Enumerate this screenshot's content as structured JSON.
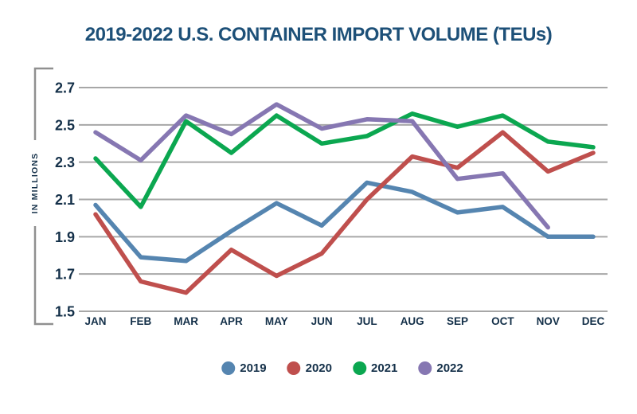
{
  "chart_data": {
    "type": "line",
    "title": "2019-2022 U.S. CONTAINER IMPORT VOLUME (TEUs)",
    "ylabel": "IN MILLIONS",
    "xlabel": "",
    "x_labels": [
      "JAN",
      "FEB",
      "MAR",
      "APR",
      "MAY",
      "JUN",
      "JUL",
      "AUG",
      "SEP",
      "OCT",
      "NOV",
      "DEC"
    ],
    "y_ticks": [
      2.7,
      2.5,
      2.3,
      2.1,
      1.9,
      1.7,
      1.5
    ],
    "ylim": [
      1.5,
      2.7
    ],
    "grid": true,
    "legend_position": "bottom",
    "series": [
      {
        "name": "2019",
        "color": "#5585b0",
        "values": [
          2.07,
          1.79,
          1.77,
          1.93,
          2.08,
          1.96,
          2.19,
          2.14,
          2.03,
          2.06,
          1.9,
          1.9
        ]
      },
      {
        "name": "2020",
        "color": "#bf4f4d",
        "values": [
          2.02,
          1.66,
          1.6,
          1.83,
          1.69,
          1.81,
          2.1,
          2.33,
          2.27,
          2.46,
          2.25,
          2.35
        ]
      },
      {
        "name": "2021",
        "color": "#0ba750",
        "values": [
          2.32,
          2.06,
          2.52,
          2.35,
          2.55,
          2.4,
          2.44,
          2.56,
          2.49,
          2.55,
          2.41,
          2.38
        ]
      },
      {
        "name": "2022",
        "color": "#8677b2",
        "values": [
          2.46,
          2.31,
          2.55,
          2.45,
          2.61,
          2.48,
          2.53,
          2.52,
          2.21,
          2.24,
          1.95,
          null
        ]
      }
    ],
    "colors": {
      "title_text": "#1d5078",
      "axis_text": "#143049",
      "grid": "#a7a7a7",
      "bracket": "#909090",
      "background": "#ffffff"
    }
  }
}
